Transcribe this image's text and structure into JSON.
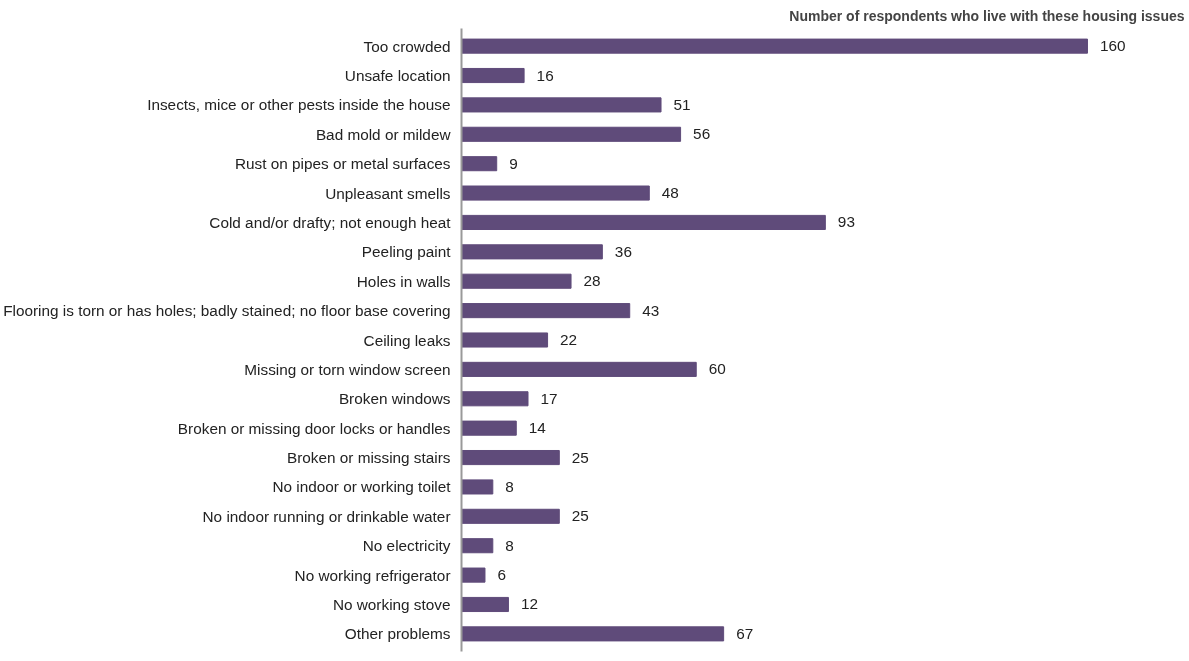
{
  "chart_data": {
    "type": "bar",
    "orientation": "horizontal",
    "title": "Number of respondents who live with these housing issues",
    "categories": [
      "Too crowded",
      "Unsafe location",
      "Insects, mice or other pests inside the house",
      "Bad mold or mildew",
      "Rust on pipes or metal surfaces",
      "Unpleasant smells",
      "Cold and/or drafty; not enough heat",
      "Peeling paint",
      "Holes in walls",
      "Flooring is torn or has holes; badly stained; no floor base covering",
      "Ceiling leaks",
      "Missing or torn window screen",
      "Broken windows",
      "Broken or missing door locks or handles",
      "Broken or missing stairs",
      "No indoor or working toilet",
      "No indoor running or drinkable water",
      "No electricity",
      "No working refrigerator",
      "No working stove",
      "Other problems"
    ],
    "values": [
      160,
      16,
      51,
      56,
      9,
      48,
      93,
      36,
      28,
      43,
      22,
      60,
      17,
      14,
      25,
      8,
      25,
      8,
      6,
      12,
      67
    ],
    "color": "#5f4b7a",
    "data_labels": true
  }
}
